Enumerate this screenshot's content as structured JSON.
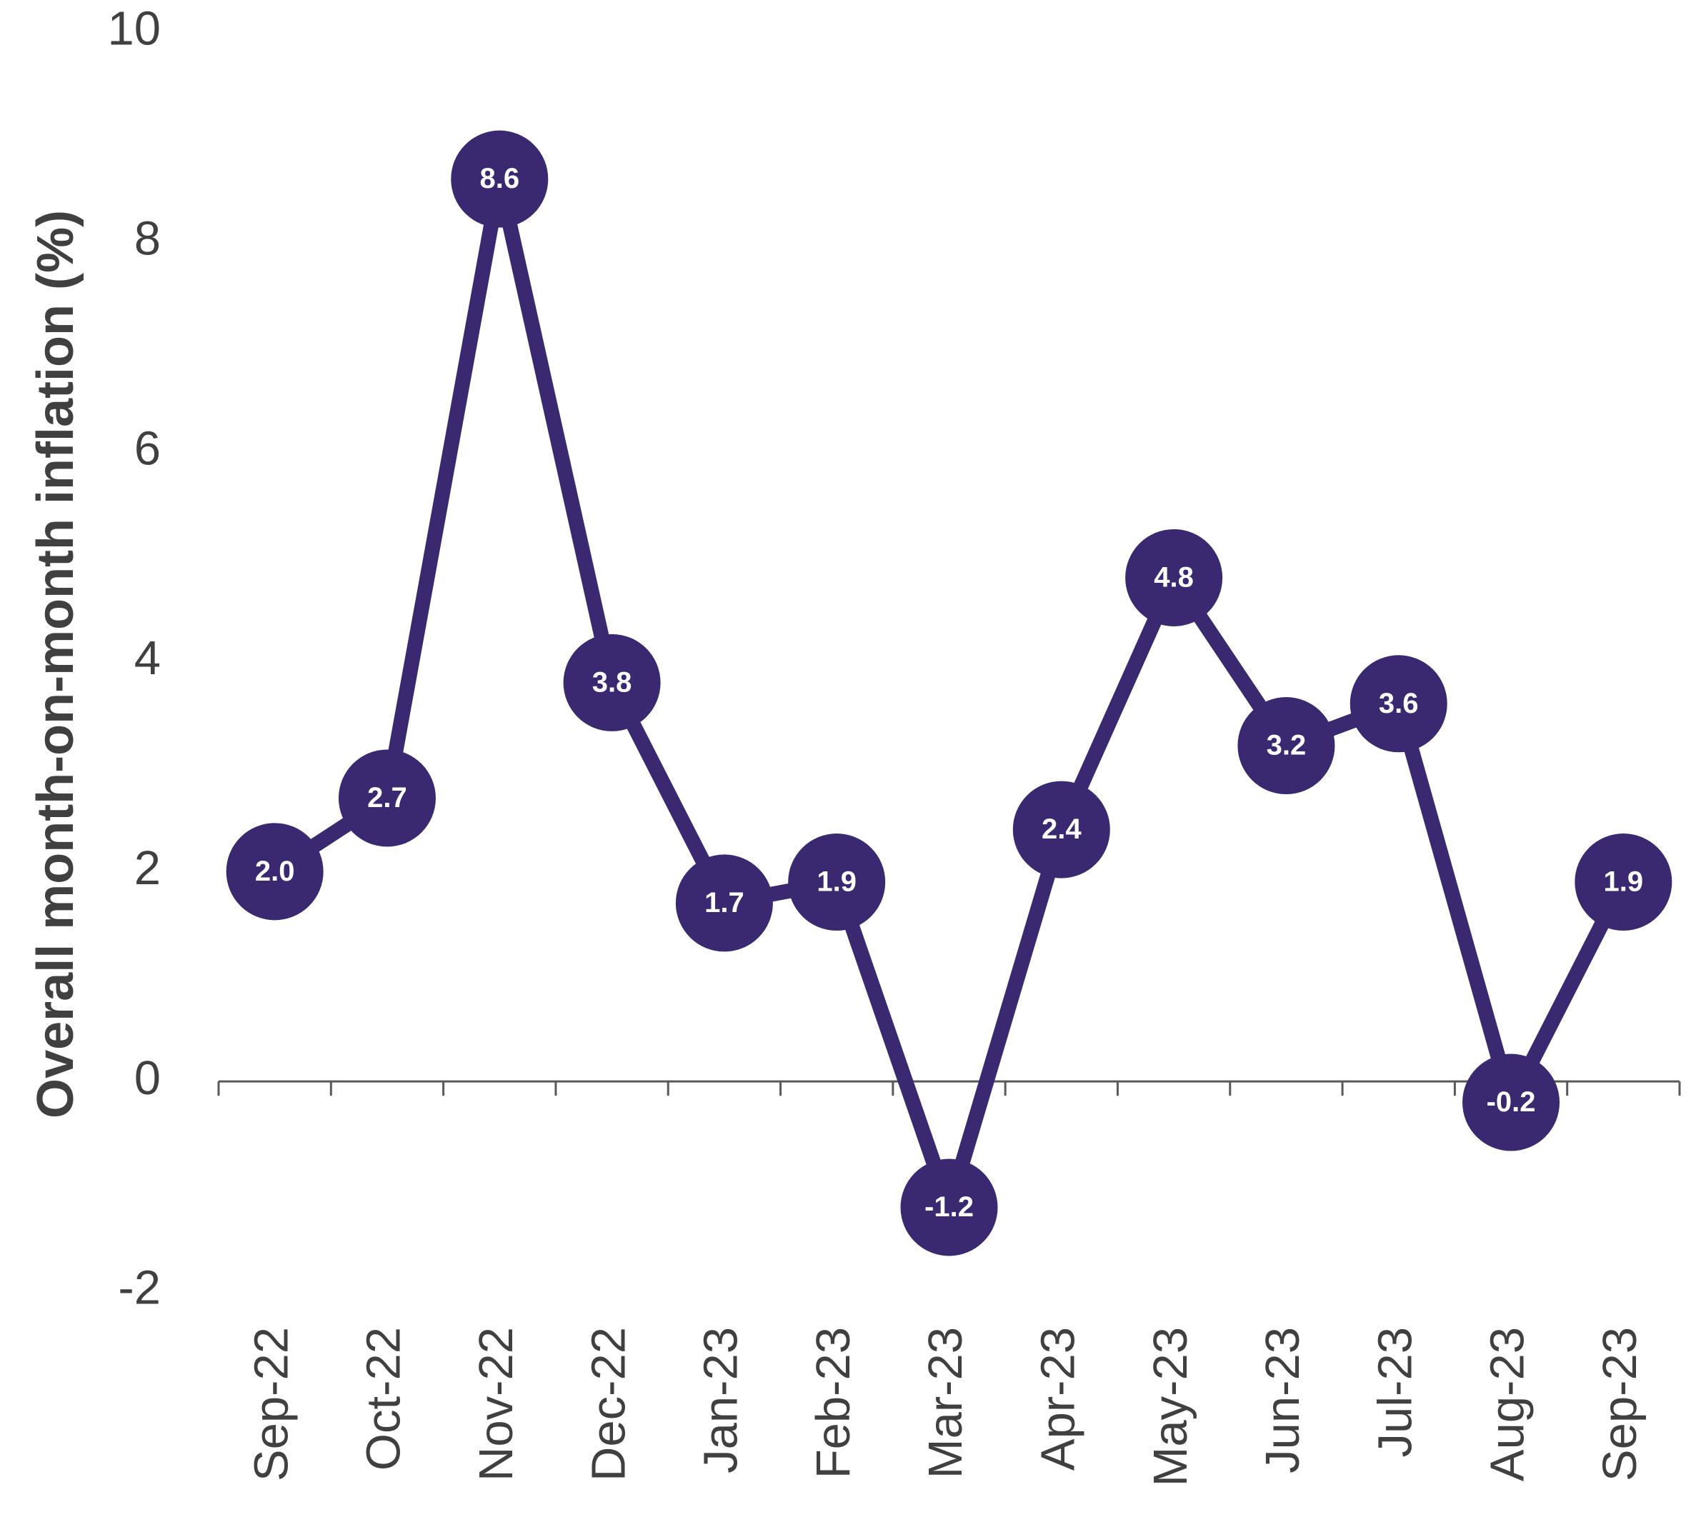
{
  "chart_data": {
    "type": "line",
    "y_axis_label": "Overall month-on-month inflation (%)",
    "categories": [
      "Sep-22",
      "Oct-22",
      "Nov-22",
      "Dec-22",
      "Jan-23",
      "Feb-23",
      "Mar-23",
      "Apr-23",
      "May-23",
      "Jun-23",
      "Jul-23",
      "Aug-23",
      "Sep-23"
    ],
    "series": [
      {
        "name": "Overall month-on-month inflation",
        "color": "#3a2870",
        "values": [
          2.0,
          2.7,
          8.6,
          3.8,
          1.7,
          1.9,
          -1.2,
          2.4,
          4.8,
          3.2,
          3.6,
          -0.2,
          1.9
        ],
        "value_labels": [
          "2.0",
          "2.7",
          "8.6",
          "3.8",
          "1.7",
          "1.9",
          "-1.2",
          "2.4",
          "4.8",
          "3.2",
          "3.6",
          "-0.2",
          "1.9"
        ]
      }
    ],
    "ylim": [
      -2,
      10
    ],
    "yticks": [
      -2,
      0,
      2,
      4,
      6,
      8,
      10
    ],
    "grid": false
  }
}
